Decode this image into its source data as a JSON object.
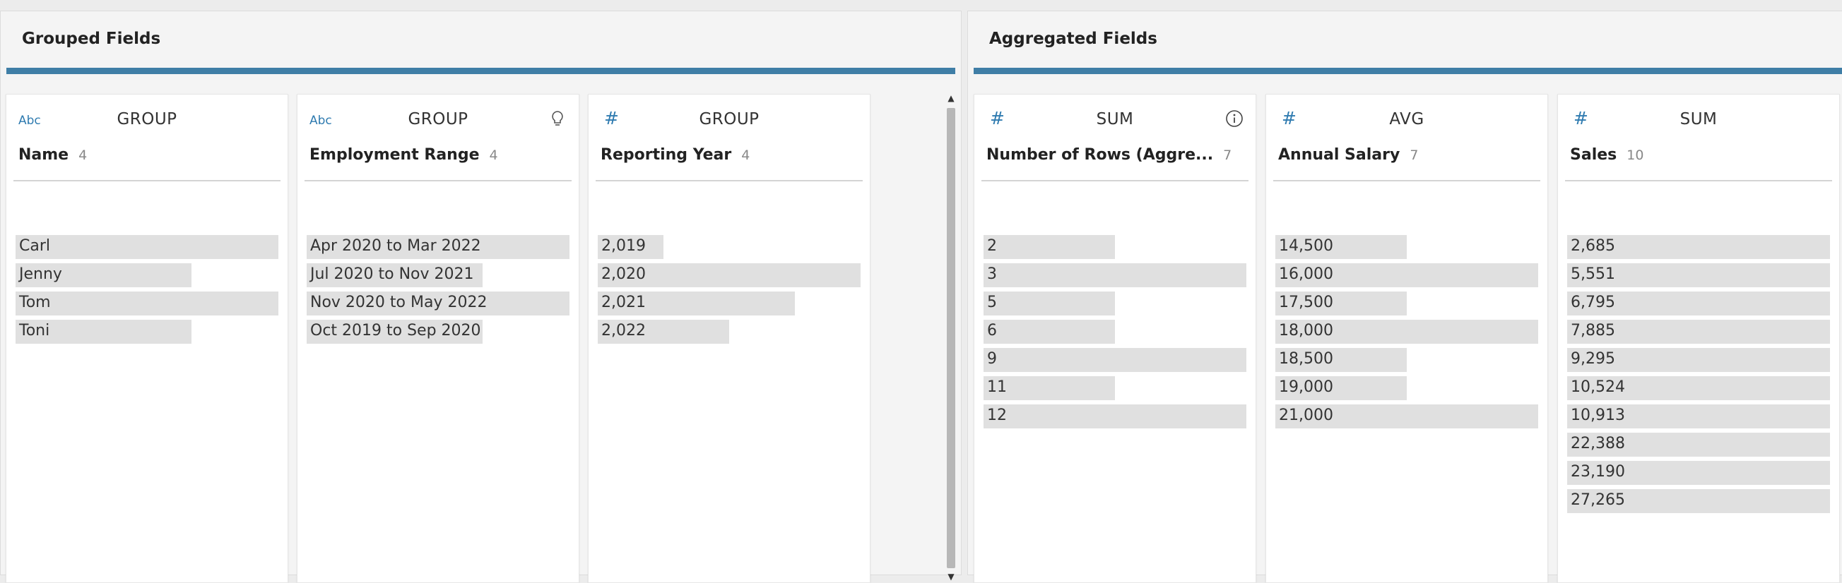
{
  "panes": {
    "grouped": {
      "title": "Grouped Fields",
      "cards": [
        {
          "type_label": "Abc",
          "role": "GROUP",
          "name": "Name",
          "count": "4",
          "items": [
            {
              "label": "Carl",
              "fill": 1.0
            },
            {
              "label": "Jenny",
              "fill": 0.67
            },
            {
              "label": "Tom",
              "fill": 1.0
            },
            {
              "label": "Toni",
              "fill": 0.67
            }
          ]
        },
        {
          "type_label": "Abc",
          "role": "GROUP",
          "name": "Employment Range",
          "count": "4",
          "icon": "lightbulb-icon",
          "items": [
            {
              "label": "Apr 2020 to Mar 2022",
              "fill": 1.0
            },
            {
              "label": "Jul 2020 to Nov 2021",
              "fill": 0.67
            },
            {
              "label": "Nov 2020 to May 2022",
              "fill": 1.0
            },
            {
              "label": "Oct 2019 to Sep 2020",
              "fill": 0.67
            }
          ]
        },
        {
          "type_label": "#",
          "role": "GROUP",
          "name": "Reporting Year",
          "count": "4",
          "items": [
            {
              "label": "2,019",
              "fill": 0.25
            },
            {
              "label": "2,020",
              "fill": 1.0
            },
            {
              "label": "2,021",
              "fill": 0.75
            },
            {
              "label": "2,022",
              "fill": 0.5
            }
          ]
        }
      ]
    },
    "aggregated": {
      "title": "Aggregated Fields",
      "cards": [
        {
          "type_label": "#",
          "role": "SUM",
          "name": "Number of Rows (Aggre...",
          "count": "7",
          "icon": "info-icon",
          "items": [
            {
              "label": "2",
              "fill": 0.5
            },
            {
              "label": "3",
              "fill": 1.0
            },
            {
              "label": "5",
              "fill": 0.5
            },
            {
              "label": "6",
              "fill": 0.5
            },
            {
              "label": "9",
              "fill": 1.0
            },
            {
              "label": "11",
              "fill": 0.5
            },
            {
              "label": "12",
              "fill": 1.0
            }
          ]
        },
        {
          "type_label": "#",
          "role": "AVG",
          "name": "Annual Salary",
          "count": "7",
          "items": [
            {
              "label": "14,500",
              "fill": 0.5
            },
            {
              "label": "16,000",
              "fill": 1.0
            },
            {
              "label": "17,500",
              "fill": 0.5
            },
            {
              "label": "18,000",
              "fill": 1.0
            },
            {
              "label": "18,500",
              "fill": 0.5
            },
            {
              "label": "19,000",
              "fill": 0.5
            },
            {
              "label": "21,000",
              "fill": 1.0
            }
          ]
        },
        {
          "type_label": "#",
          "role": "SUM",
          "name": "Sales",
          "count": "10",
          "items": [
            {
              "label": "2,685",
              "fill": 1.0
            },
            {
              "label": "5,551",
              "fill": 1.0
            },
            {
              "label": "6,795",
              "fill": 1.0
            },
            {
              "label": "7,885",
              "fill": 1.0
            },
            {
              "label": "9,295",
              "fill": 1.0
            },
            {
              "label": "10,524",
              "fill": 1.0
            },
            {
              "label": "10,913",
              "fill": 1.0
            },
            {
              "label": "22,388",
              "fill": 1.0
            },
            {
              "label": "23,190",
              "fill": 1.0
            },
            {
              "label": "27,265",
              "fill": 1.0
            }
          ]
        }
      ]
    }
  },
  "colors": {
    "accent": "#3f7ea6",
    "type_icon": "#2f7bb0",
    "bar": "#e0e0e0"
  }
}
